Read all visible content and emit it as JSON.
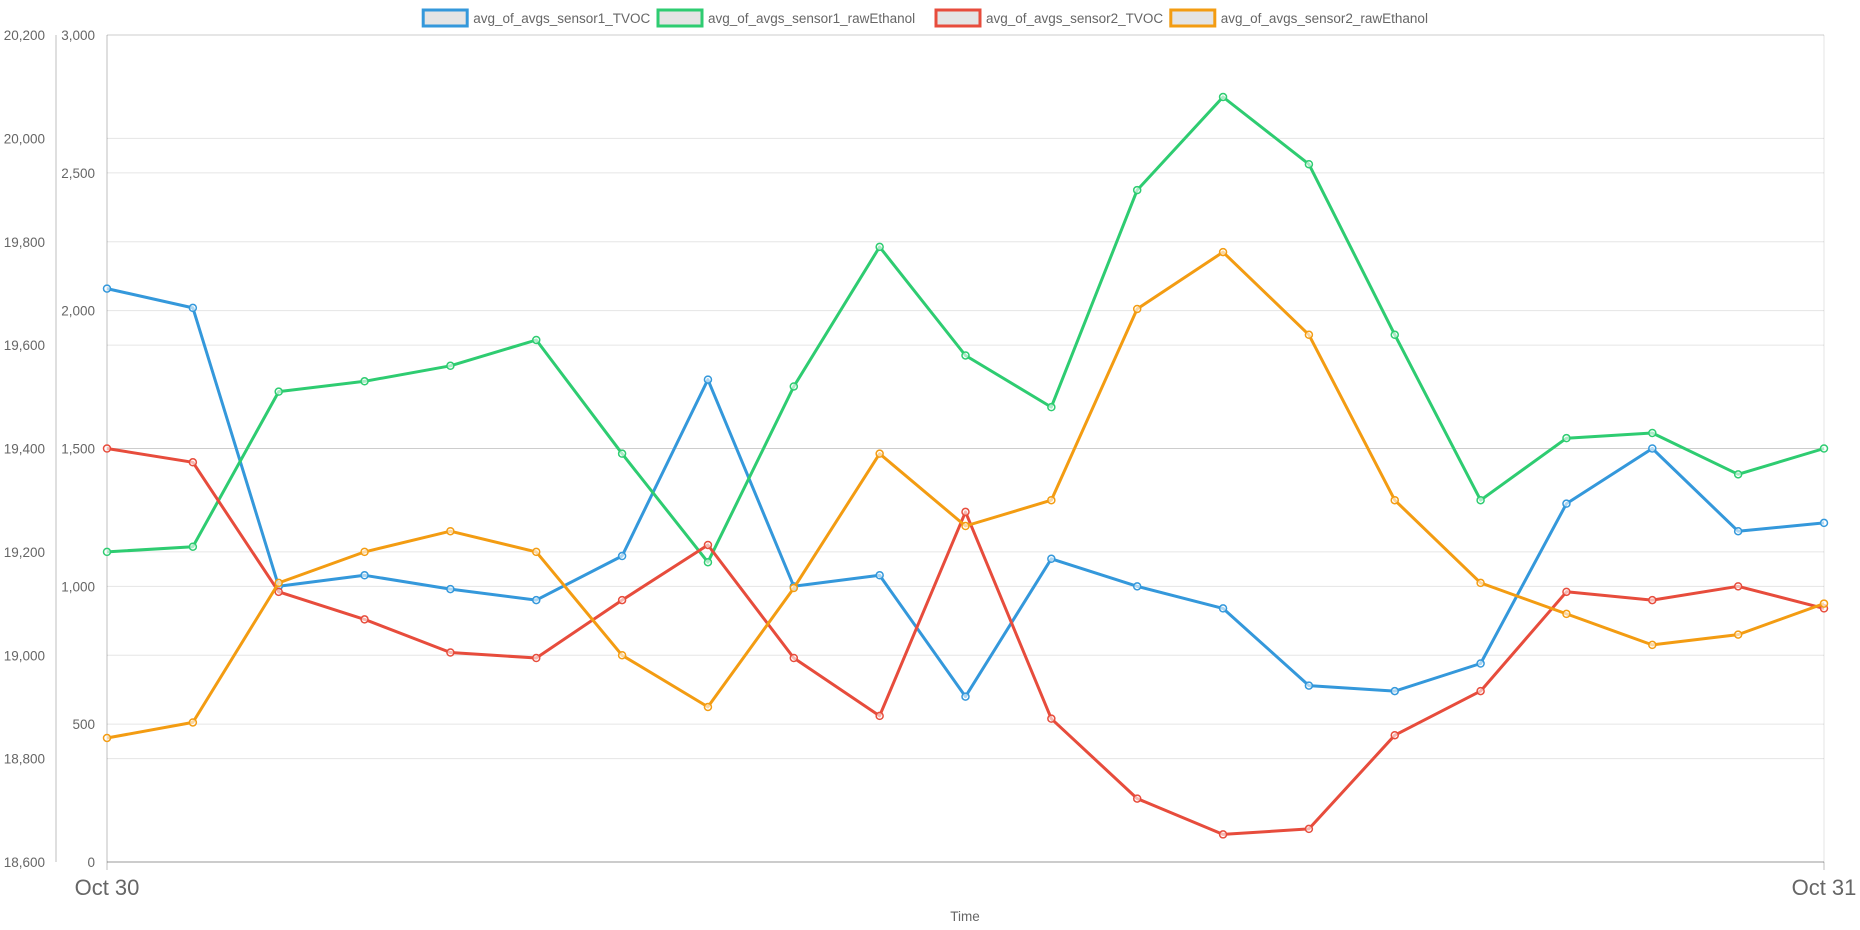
{
  "chart_data": {
    "type": "line",
    "xlabel": "Time",
    "x_ticks": [
      "Oct 30",
      "Oct 31"
    ],
    "y_axes": [
      {
        "id": "left-outer",
        "ylim": [
          18600,
          20200
        ],
        "ticks": [
          "18,600",
          "18,800",
          "19,000",
          "19,200",
          "19,400",
          "19,600",
          "19,800",
          "20,000",
          "20,200"
        ]
      },
      {
        "id": "left-inner",
        "ylim": [
          0,
          3000
        ],
        "ticks": [
          "0",
          "500",
          "1,000",
          "1,500",
          "2,000",
          "2,500",
          "3,000"
        ]
      }
    ],
    "grid": true,
    "legend_position": "top",
    "x_samples": 21,
    "series": [
      {
        "name": "avg_of_avgs_sensor1_TVOC",
        "color": "#3498db",
        "axis": "left-inner",
        "values": [
          2080,
          2010,
          1000,
          1040,
          990,
          950,
          1110,
          1750,
          1000,
          1040,
          600,
          1100,
          1000,
          920,
          640,
          620,
          720,
          1300,
          1500,
          1200,
          1230
        ]
      },
      {
        "name": "avg_of_avgs_sensor1_rawEthanol",
        "color": "#2ecc71",
        "axis": "left-outer",
        "values": [
          19200,
          19210,
          19510,
          19530,
          19560,
          19610,
          19390,
          19180,
          19520,
          19790,
          19580,
          19480,
          19900,
          20080,
          19950,
          19620,
          19300,
          19420,
          19430,
          19350,
          19400
        ]
      },
      {
        "name": "avg_of_avgs_sensor2_TVOC",
        "color": "#e74c3c",
        "axis": "left-inner",
        "values": [
          1500,
          1450,
          980,
          880,
          760,
          740,
          950,
          1150,
          740,
          530,
          1270,
          520,
          230,
          100,
          120,
          460,
          620,
          980,
          950,
          1000,
          920
        ]
      },
      {
        "name": "avg_of_avgs_sensor2_rawEthanol",
        "color": "#f39c12",
        "axis": "left-outer",
        "values": [
          18840,
          18870,
          19140,
          19200,
          19240,
          19200,
          19000,
          18900,
          19130,
          19390,
          19250,
          19300,
          19670,
          19780,
          19620,
          19300,
          19140,
          19080,
          19020,
          19040,
          19100
        ]
      }
    ]
  }
}
